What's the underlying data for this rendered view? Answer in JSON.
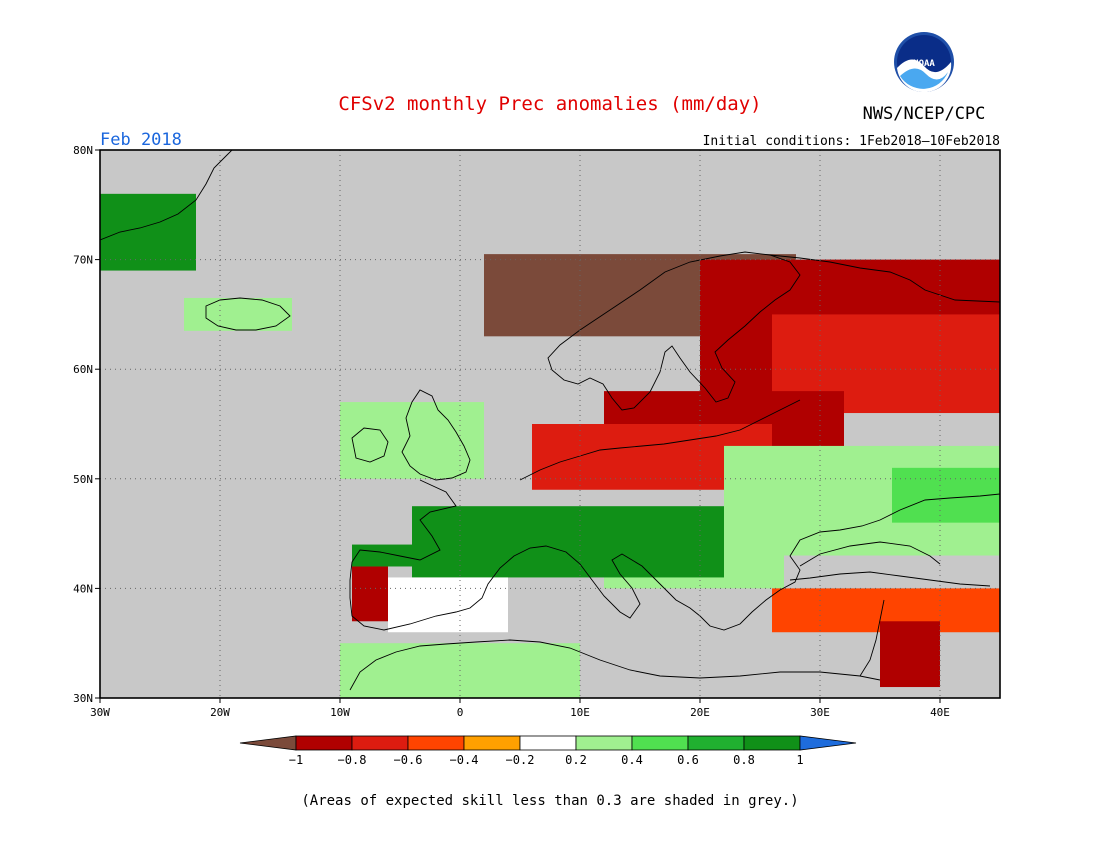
{
  "header": {
    "title": "CFSv2 monthly Prec anomalies (mm/day)",
    "title_color": "#e00000",
    "agency": "NWS/NCEP/CPC",
    "valid_month": "Feb 2018",
    "valid_month_color": "#1a66dd",
    "initial_conditions": "Initial conditions: 1Feb2018–10Feb2018",
    "logo_text": "NOAA"
  },
  "map": {
    "lon_range": [
      -30,
      45
    ],
    "lat_range": [
      30,
      80
    ],
    "lat_ticks": [
      {
        "value": 80,
        "label": "80N"
      },
      {
        "value": 70,
        "label": "70N"
      },
      {
        "value": 60,
        "label": "60N"
      },
      {
        "value": 50,
        "label": "50N"
      },
      {
        "value": 40,
        "label": "40N"
      },
      {
        "value": 30,
        "label": "30N"
      }
    ],
    "lon_ticks": [
      {
        "value": -30,
        "label": "30W"
      },
      {
        "value": -20,
        "label": "20W"
      },
      {
        "value": -10,
        "label": "10W"
      },
      {
        "value": 0,
        "label": "0"
      },
      {
        "value": 10,
        "label": "10E"
      },
      {
        "value": 20,
        "label": "20E"
      },
      {
        "value": 30,
        "label": "30E"
      },
      {
        "value": 40,
        "label": "40E"
      }
    ],
    "grid_color": "#666666",
    "mask_color": "#c8c8c8"
  },
  "anomaly_regions": [
    {
      "name": "northern-scandinavia",
      "level": 0,
      "lon": [
        2,
        28
      ],
      "lat": [
        63,
        70.5
      ]
    },
    {
      "name": "finland-northwest-russia",
      "level": 1,
      "lon": [
        20,
        45
      ],
      "lat": [
        57,
        70
      ]
    },
    {
      "name": "western-russia",
      "level": 2,
      "lon": [
        26,
        45
      ],
      "lat": [
        56,
        65
      ]
    },
    {
      "name": "baltic-belarus",
      "level": 1,
      "lon": [
        12,
        32
      ],
      "lat": [
        51,
        58
      ]
    },
    {
      "name": "germany-poland",
      "level": 2,
      "lon": [
        6,
        26
      ],
      "lat": [
        49,
        55
      ]
    },
    {
      "name": "ukraine-south-russia",
      "level": 6,
      "lon": [
        22,
        45
      ],
      "lat": [
        43,
        53
      ]
    },
    {
      "name": "caucasus",
      "level": 7,
      "lon": [
        36,
        45
      ],
      "lat": [
        46,
        51
      ]
    },
    {
      "name": "balkans",
      "level": 6,
      "lon": [
        12,
        27
      ],
      "lat": [
        40,
        46
      ]
    },
    {
      "name": "france-alps-italy",
      "level": 9,
      "lon": [
        -4,
        22
      ],
      "lat": [
        41,
        47.5
      ]
    },
    {
      "name": "western-iberia",
      "level": 1,
      "lon": [
        -9,
        -6
      ],
      "lat": [
        37,
        42
      ]
    },
    {
      "name": "northern-iberia",
      "level": 9,
      "lon": [
        -9,
        2
      ],
      "lat": [
        42,
        44
      ]
    },
    {
      "name": "southern-iberia",
      "level": 5,
      "lon": [
        -6,
        4
      ],
      "lat": [
        36,
        41
      ]
    },
    {
      "name": "british-isles",
      "level": 6,
      "lon": [
        -10,
        2
      ],
      "lat": [
        50,
        57
      ]
    },
    {
      "name": "turkey",
      "level": 3,
      "lon": [
        26,
        45
      ],
      "lat": [
        36,
        40
      ]
    },
    {
      "name": "middle-east",
      "level": 1,
      "lon": [
        35,
        40
      ],
      "lat": [
        31,
        37
      ]
    },
    {
      "name": "north-africa",
      "level": 6,
      "lon": [
        -10,
        10
      ],
      "lat": [
        30,
        35
      ]
    },
    {
      "name": "greenland-coast",
      "level": 9,
      "lon": [
        -30,
        -22
      ],
      "lat": [
        69,
        76
      ]
    },
    {
      "name": "iceland",
      "level": 6,
      "lon": [
        -23,
        -14
      ],
      "lat": [
        63.5,
        66.5
      ]
    }
  ],
  "colorbar": {
    "colors": [
      "#7b4a3a",
      "#b00000",
      "#dd1c10",
      "#ff4400",
      "#ffa000",
      "#ffffff",
      "#a0f090",
      "#50e050",
      "#20b030",
      "#109018",
      "#1e6cdc"
    ],
    "labels": [
      "−1",
      "−0.8",
      "−0.6",
      "−0.4",
      "−0.2",
      "0.2",
      "0.4",
      "0.6",
      "0.8",
      "1"
    ]
  },
  "footnote": "(Areas of expected skill less than 0.3 are shaded in grey.)"
}
